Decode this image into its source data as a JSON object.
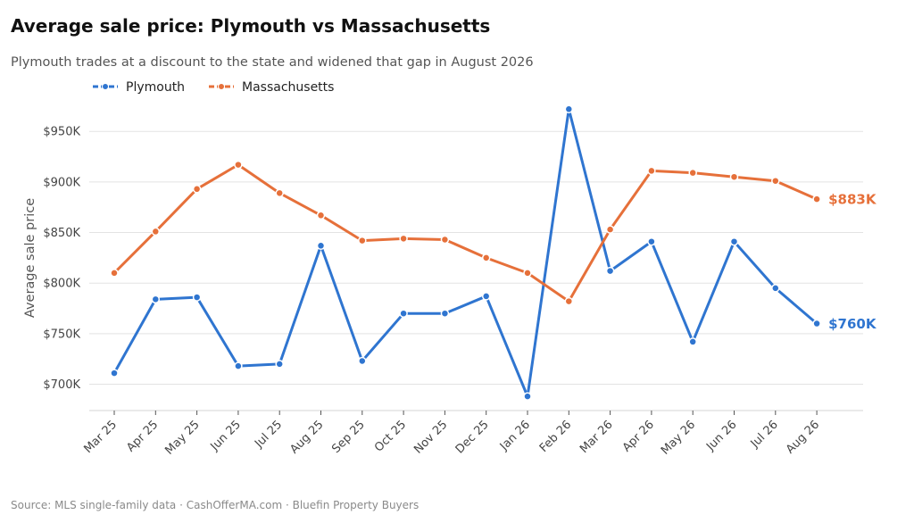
{
  "chart_data": {
    "type": "line",
    "title": "Average sale price: Plymouth vs Massachusetts",
    "subtitle": "Plymouth trades at a discount to the state and widened that gap in August 2026",
    "ylabel": "Average sale price",
    "xlabel": "",
    "source": "Source: MLS single-family data  ·  CashOfferMA.com  ·  Bluefin Property Buyers",
    "categories": [
      "Mar 25",
      "Apr 25",
      "May 25",
      "Jun 25",
      "Jul 25",
      "Aug 25",
      "Sep 25",
      "Oct 25",
      "Nov 25",
      "Dec 25",
      "Jan 26",
      "Feb 26",
      "Mar 26",
      "Apr 26",
      "May 26",
      "Jun 26",
      "Jul 26",
      "Aug 26"
    ],
    "ylim": [
      674000,
      974000
    ],
    "yticks": [
      700000,
      750000,
      800000,
      850000,
      900000,
      950000
    ],
    "ytick_labels": [
      "$700K",
      "$750K",
      "$800K",
      "$850K",
      "$900K",
      "$950K"
    ],
    "grid": "horizontal",
    "legend": "top-left",
    "series": [
      {
        "name": "Plymouth",
        "color": "#2f75d0",
        "values": [
          711000,
          784000,
          786000,
          718000,
          720000,
          837000,
          723000,
          770000,
          770000,
          787000,
          688000,
          972000,
          812000,
          841000,
          742000,
          841000,
          795000,
          760000
        ],
        "end_label": "$760K"
      },
      {
        "name": "Massachusetts",
        "color": "#e6703a",
        "values": [
          810000,
          851000,
          893000,
          917000,
          889000,
          867000,
          842000,
          844000,
          843000,
          825000,
          810000,
          782000,
          853000,
          911000,
          909000,
          905000,
          901000,
          883000
        ],
        "end_label": "$883K"
      }
    ]
  }
}
